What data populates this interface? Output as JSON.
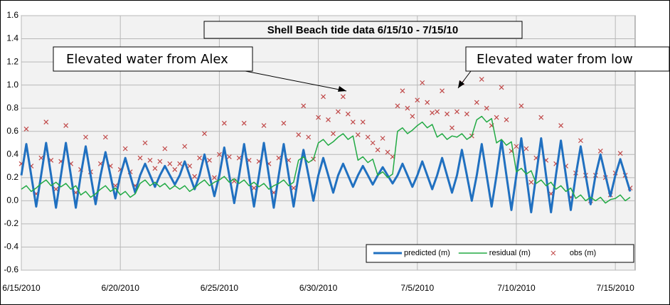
{
  "chart_data": {
    "type": "line",
    "title": "Shell Beach tide data   6/15/10 - 7/15/10",
    "annotations": [
      "Elevated water from Alex",
      "Elevated water from low"
    ],
    "xlim": [
      0,
      31
    ],
    "xticks": [
      {
        "value": 0,
        "label": "6/15/2010"
      },
      {
        "value": 5,
        "label": "6/20/2010"
      },
      {
        "value": 10,
        "label": "6/25/2010"
      },
      {
        "value": 15,
        "label": "6/30/2010"
      },
      {
        "value": 20,
        "label": "7/5/2010"
      },
      {
        "value": 25,
        "label": "7/10/2010"
      },
      {
        "value": 30,
        "label": "7/15/2010"
      }
    ],
    "ylim": [
      -0.6,
      1.6
    ],
    "yticks": [
      -0.6,
      -0.4,
      -0.2,
      {
        "value": 0,
        "label": "0.0"
      },
      0.2,
      0.4,
      0.6,
      0.8,
      {
        "value": 1,
        "label": "1.0"
      },
      1.2,
      1.4,
      1.6
    ],
    "grid": true,
    "legend": "bottom-right",
    "x": [
      0,
      0.25,
      0.5,
      0.75,
      1,
      1.25,
      1.5,
      1.75,
      2,
      2.25,
      2.5,
      2.75,
      3,
      3.25,
      3.5,
      3.75,
      4,
      4.25,
      4.5,
      4.75,
      5,
      5.25,
      5.5,
      5.75,
      6,
      6.25,
      6.5,
      6.75,
      7,
      7.25,
      7.5,
      7.75,
      8,
      8.25,
      8.5,
      8.75,
      9,
      9.25,
      9.5,
      9.75,
      10,
      10.25,
      10.5,
      10.75,
      11,
      11.25,
      11.5,
      11.75,
      12,
      12.25,
      12.5,
      12.75,
      13,
      13.25,
      13.5,
      13.75,
      14,
      14.25,
      14.5,
      14.75,
      15,
      15.25,
      15.5,
      15.75,
      16,
      16.25,
      16.5,
      16.75,
      17,
      17.25,
      17.5,
      17.75,
      18,
      18.25,
      18.5,
      18.75,
      19,
      19.25,
      19.5,
      19.75,
      20,
      20.25,
      20.5,
      20.75,
      21,
      21.25,
      21.5,
      21.75,
      22,
      22.25,
      22.5,
      22.75,
      23,
      23.25,
      23.5,
      23.75,
      24,
      24.25,
      24.5,
      24.75,
      25,
      25.25,
      25.5,
      25.75,
      26,
      26.25,
      26.5,
      26.75,
      27,
      27.25,
      27.5,
      27.75,
      28,
      28.25,
      28.5,
      28.75,
      29,
      29.25,
      29.5,
      29.75,
      30,
      30.25,
      30.5,
      30.75
    ],
    "series": [
      {
        "name": "predicted (m)",
        "color": "#2070c0",
        "style": "line",
        "values": [
          0.22,
          0.49,
          0.22,
          -0.05,
          0.22,
          0.5,
          0.22,
          -0.06,
          0.22,
          0.5,
          0.22,
          -0.06,
          0.22,
          0.47,
          0.22,
          -0.03,
          0.22,
          0.42,
          0.22,
          0.02,
          0.22,
          0.37,
          0.22,
          0.07,
          0.22,
          0.32,
          0.22,
          0.12,
          0.22,
          0.3,
          0.22,
          0.14,
          0.22,
          0.34,
          0.22,
          0.1,
          0.22,
          0.4,
          0.22,
          0.04,
          0.22,
          0.46,
          0.22,
          -0.02,
          0.22,
          0.49,
          0.22,
          -0.05,
          0.22,
          0.5,
          0.22,
          -0.06,
          0.22,
          0.49,
          0.22,
          -0.05,
          0.22,
          0.44,
          0.22,
          0,
          0.22,
          0.37,
          0.22,
          0.07,
          0.22,
          0.32,
          0.22,
          0.12,
          0.22,
          0.3,
          0.22,
          0.14,
          0.22,
          0.29,
          0.22,
          0.15,
          0.22,
          0.32,
          0.22,
          0.12,
          0.22,
          0.34,
          0.22,
          0.1,
          0.22,
          0.37,
          0.22,
          0.07,
          0.22,
          0.44,
          0.22,
          0,
          0.22,
          0.49,
          0.22,
          -0.05,
          0.22,
          0.52,
          0.22,
          -0.08,
          0.22,
          0.54,
          0.22,
          -0.1,
          0.22,
          0.54,
          0.22,
          -0.1,
          0.22,
          0.52,
          0.22,
          -0.08,
          0.22,
          0.47,
          0.22,
          -0.03,
          0.22,
          0.4,
          0.22,
          0.04,
          0.22,
          0.36,
          0.22,
          0.08
        ]
      },
      {
        "name": "residual (m)",
        "color": "#22aa44",
        "style": "line",
        "values": [
          0.1,
          0.13,
          0.08,
          0.11,
          0.15,
          0.18,
          0.13,
          0.16,
          0.12,
          0.15,
          0.1,
          0.13,
          0.05,
          0.08,
          0.03,
          0.06,
          0.1,
          0.13,
          0.08,
          0.11,
          0.05,
          0.08,
          0.03,
          0.06,
          0.15,
          0.18,
          0.13,
          0.16,
          0.12,
          0.15,
          0.1,
          0.13,
          0.1,
          0.13,
          0.08,
          0.11,
          0.15,
          0.18,
          0.13,
          0.16,
          0.18,
          0.21,
          0.16,
          0.19,
          0.15,
          0.18,
          0.13,
          0.16,
          0.12,
          0.15,
          0.1,
          0.13,
          0.15,
          0.18,
          0.13,
          0.16,
          0.35,
          0.38,
          0.33,
          0.36,
          0.5,
          0.53,
          0.48,
          0.51,
          0.55,
          0.58,
          0.53,
          0.56,
          0.35,
          0.38,
          0.33,
          0.36,
          0.22,
          0.25,
          0.2,
          0.23,
          0.6,
          0.63,
          0.58,
          0.61,
          0.65,
          0.68,
          0.63,
          0.66,
          0.55,
          0.58,
          0.53,
          0.56,
          0.55,
          0.58,
          0.53,
          0.56,
          0.7,
          0.73,
          0.68,
          0.71,
          0.5,
          0.53,
          0.48,
          0.51,
          0.25,
          0.28,
          0.23,
          0.26,
          0.15,
          0.18,
          0.13,
          0.16,
          0.1,
          0.13,
          0.08,
          0.11,
          0.02,
          0.05,
          0,
          0.03,
          0,
          0.03,
          -0.02,
          0.01,
          0.02,
          0.05,
          0,
          0.03
        ]
      },
      {
        "name": "obs (m)",
        "color": "#c04848",
        "style": "marker",
        "values": [
          0.32,
          0.62,
          0.3,
          0.06,
          0.37,
          0.68,
          0.35,
          0.1,
          0.34,
          0.65,
          0.32,
          0.07,
          0.27,
          0.55,
          0.25,
          0.03,
          0.32,
          0.55,
          0.3,
          0.13,
          0.27,
          0.45,
          0.25,
          0.13,
          0.37,
          0.5,
          0.35,
          0.28,
          0.34,
          0.45,
          0.32,
          0.27,
          0.32,
          0.47,
          0.3,
          0.21,
          0.37,
          0.58,
          0.35,
          0.2,
          0.4,
          0.67,
          0.38,
          0.17,
          0.37,
          0.67,
          0.35,
          0.11,
          0.34,
          0.65,
          0.32,
          0.07,
          0.37,
          0.67,
          0.35,
          0.11,
          0.57,
          0.82,
          0.55,
          0.36,
          0.72,
          0.9,
          0.7,
          0.58,
          0.77,
          0.9,
          0.75,
          0.68,
          0.57,
          0.68,
          0.55,
          0.5,
          0.44,
          0.54,
          0.42,
          0.38,
          0.82,
          0.95,
          0.8,
          0.73,
          0.87,
          1.02,
          0.85,
          0.76,
          0.77,
          0.95,
          0.75,
          0.63,
          0.77,
          1.02,
          0.75,
          0.56,
          0.85,
          1.05,
          0.8,
          0.65,
          0.72,
          0.98,
          0.7,
          0.43,
          0.47,
          0.82,
          0.45,
          0.16,
          0.37,
          0.72,
          0.35,
          0.06,
          0.32,
          0.65,
          0.3,
          0.03,
          0.24,
          0.52,
          0.22,
          0,
          0.22,
          0.43,
          0.2,
          0.05,
          0.24,
          0.41,
          0.22,
          0.11
        ]
      }
    ]
  }
}
